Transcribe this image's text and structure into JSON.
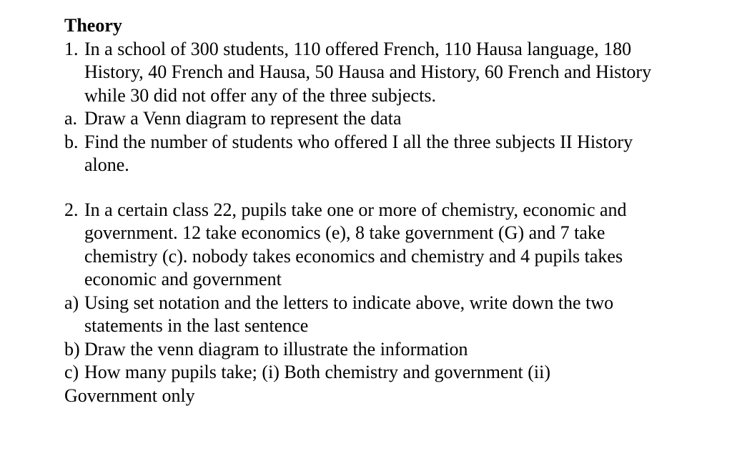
{
  "heading": "Theory",
  "q1": {
    "num": "1.",
    "text": "In a school of 300 students, 110 offered French, 110 Hausa language, 180 History, 40 French and Hausa, 50 Hausa and History, 60 French and History while 30 did not offer any of the three subjects.",
    "a_marker": "a.",
    "a_text": "Draw a Venn diagram to represent the data",
    "b_marker": "b.",
    "b_text": "Find the number of students who offered   I all the three subjects II History alone."
  },
  "q2": {
    "num": "2.",
    "text": "In a certain class 22, pupils take one or more of chemistry, economic and government. 12 take economics (e), 8 take government (G) and 7 take chemistry (c). nobody takes economics and chemistry and 4 pupils takes economic and government",
    "a_marker": "a)",
    "a_text": "Using set notation and the letters to indicate above, write down the two statements in the last sentence",
    "b_marker": "b)",
    "b_text": "Draw the venn diagram to illustrate the information",
    "c_marker": "c)",
    "c_text": " How many pupils take; (i) Both chemistry and government (ii)",
    "c_cont": "Government only"
  }
}
